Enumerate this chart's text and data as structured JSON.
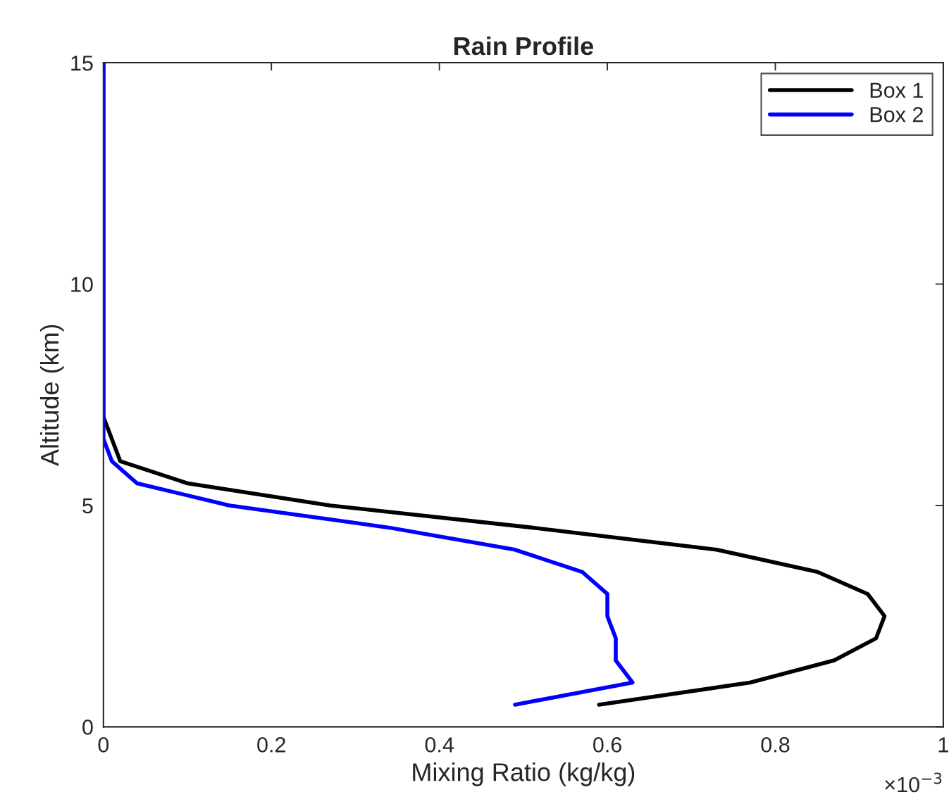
{
  "chart_data": {
    "type": "line",
    "title": "Rain Profile",
    "xlabel": "Mixing Ratio (kg/kg)",
    "ylabel": "Altitude (km)",
    "annotations": [
      "×10$^{−3}$"
    ],
    "xlim": [
      0,
      1
    ],
    "xticks": [
      0,
      0.2,
      0.4,
      0.6,
      0.8,
      1
    ],
    "ylim": [
      0,
      15
    ],
    "yticks": [
      0,
      5,
      10,
      15
    ],
    "grid": false,
    "legend": "top right",
    "marker": "none",
    "line_style": "solid",
    "series": [
      {
        "name": "Box 1",
        "color": "#000000",
        "x": [
          0.59,
          0.77,
          0.87,
          0.92,
          0.93,
          0.91,
          0.85,
          0.73,
          0.51,
          0.27,
          0.1,
          0.02,
          0.01,
          0,
          0,
          0,
          0,
          0,
          0,
          0,
          0,
          0,
          0
        ],
        "values": [
          0.5,
          1,
          1.5,
          2,
          2.5,
          3,
          3.5,
          4,
          4.5,
          5,
          5.5,
          6,
          6.5,
          7,
          7.5,
          8,
          9,
          10,
          11,
          12,
          13,
          14,
          15
        ]
      },
      {
        "name": "Box 2",
        "color": "#0000ff",
        "x": [
          0.49,
          0.63,
          0.61,
          0.61,
          0.6,
          0.6,
          0.57,
          0.49,
          0.34,
          0.15,
          0.04,
          0.01,
          0,
          0,
          0,
          0,
          0,
          0,
          0,
          0,
          0,
          0,
          0
        ],
        "values": [
          0.5,
          1,
          1.5,
          2,
          2.5,
          3,
          3.5,
          4,
          4.5,
          5,
          5.5,
          6,
          6.5,
          7,
          7.5,
          8,
          9,
          10,
          11,
          12,
          13,
          14,
          15
        ]
      }
    ]
  }
}
